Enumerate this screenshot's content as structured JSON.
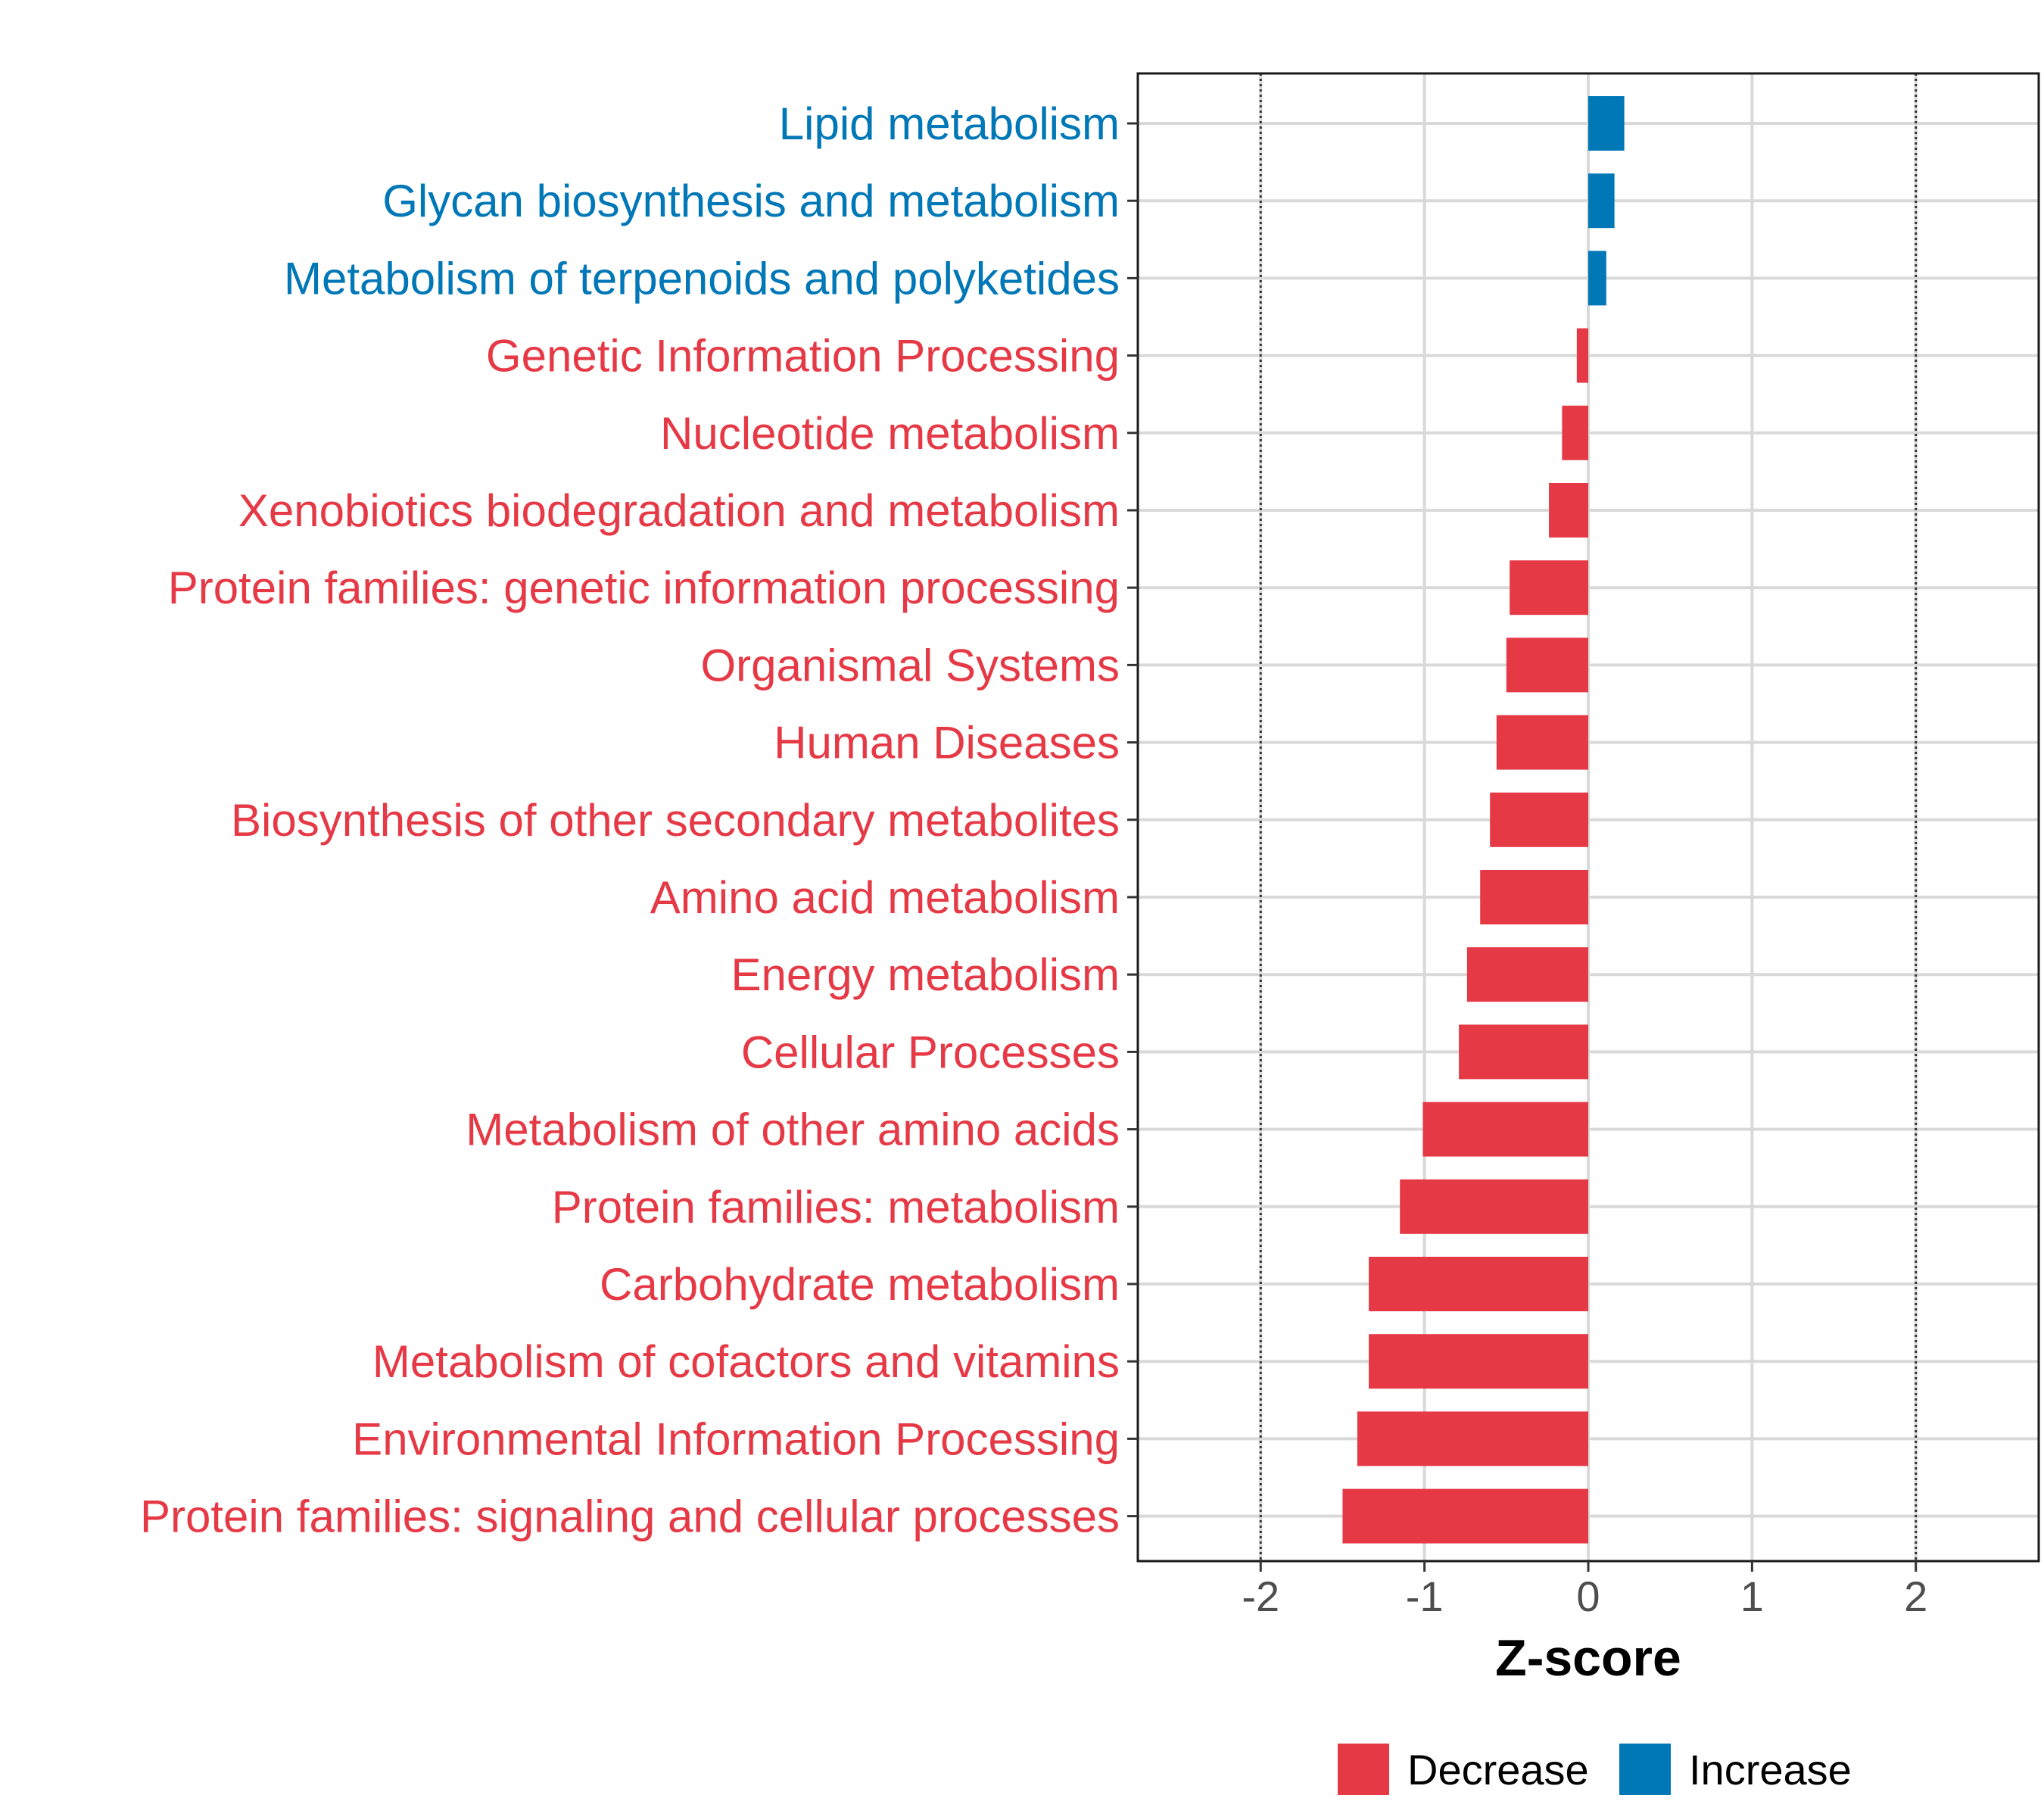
{
  "chart_data": {
    "type": "bar",
    "orientation": "horizontal",
    "title": "",
    "xlabel": "Z-score",
    "ylabel": "",
    "xlim": [
      -2.75,
      2.75
    ],
    "xticks": [
      -2,
      -1,
      0,
      1,
      2
    ],
    "xtick_labels": [
      "-2",
      "-1",
      "0",
      "1",
      "2"
    ],
    "reference_lines": [
      -2,
      2
    ],
    "grid": true,
    "legend_position": "bottom",
    "colors": {
      "Decrease": "#e63946",
      "Increase": "#0077b6"
    },
    "legend": [
      {
        "label": "Decrease",
        "color": "#e63946"
      },
      {
        "label": "Increase",
        "color": "#0077b6"
      }
    ],
    "categories": [
      "Lipid metabolism",
      "Glycan biosynthesis and metabolism",
      "Metabolism of terpenoids and polyketides",
      "Genetic Information Processing",
      "Nucleotide metabolism",
      "Xenobiotics biodegradation and metabolism",
      "Protein families: genetic information processing",
      "Organismal Systems",
      "Human Diseases",
      "Biosynthesis of other secondary metabolites",
      "Amino acid metabolism",
      "Energy metabolism",
      "Cellular Processes",
      "Metabolism of other amino acids",
      "Protein families: metabolism",
      "Carbohydrate metabolism",
      "Metabolism of cofactors and vitamins",
      "Environmental Information Processing",
      "Protein families: signaling and cellular processes"
    ],
    "values": [
      0.22,
      0.16,
      0.11,
      -0.07,
      -0.16,
      -0.24,
      -0.48,
      -0.5,
      -0.56,
      -0.6,
      -0.66,
      -0.74,
      -0.79,
      -1.01,
      -1.15,
      -1.34,
      -1.34,
      -1.41,
      -1.5
    ],
    "groups": [
      "Increase",
      "Increase",
      "Increase",
      "Decrease",
      "Decrease",
      "Decrease",
      "Decrease",
      "Decrease",
      "Decrease",
      "Decrease",
      "Decrease",
      "Decrease",
      "Decrease",
      "Decrease",
      "Decrease",
      "Decrease",
      "Decrease",
      "Decrease",
      "Decrease"
    ]
  }
}
